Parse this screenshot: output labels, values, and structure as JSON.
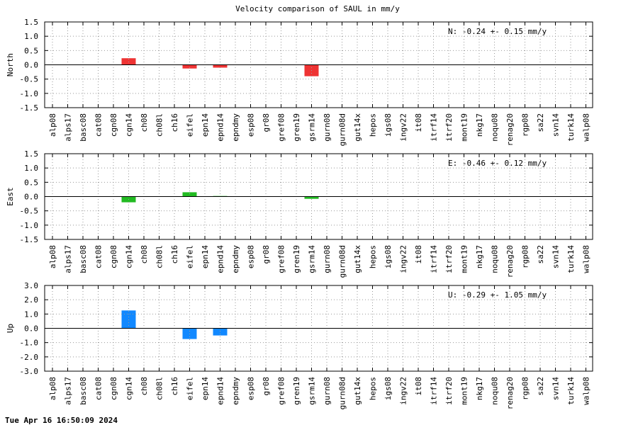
{
  "page": {
    "title": "Velocity comparison of SAUL in mm/y",
    "timestamp": "Tue Apr 16 16:50:09 2024"
  },
  "colors": {
    "north": "#ee3333",
    "east": "#22bb22",
    "up": "#1188ff",
    "grid": "#999999",
    "axis": "#000000"
  },
  "chart_data": [
    {
      "type": "bar",
      "ylabel": "North",
      "annotation": "N:  -0.24 +-  0.15 mm/y",
      "ylim": [
        -1.5,
        1.5
      ],
      "yticks": [
        "1.5",
        "1.0",
        "0.5",
        "0.0",
        "-0.5",
        "-1.0",
        "-1.5"
      ],
      "ytick_values": [
        1.5,
        1.0,
        0.5,
        0.0,
        -0.5,
        -1.0,
        -1.5
      ],
      "color_key": "north",
      "grid": true,
      "categories": [
        "alp08",
        "alps17",
        "basc08",
        "cat08",
        "cgn08",
        "cgn14",
        "ch08",
        "ch08l",
        "ch16",
        "eifel",
        "epn14",
        "epnd14",
        "epndmy",
        "esp08",
        "gr08",
        "gref08",
        "gren19",
        "gsrm14",
        "gurn08",
        "gurn08d",
        "gut14x",
        "hepos",
        "igs08",
        "ingv22",
        "it08",
        "itrf14",
        "itrf20",
        "mont19",
        "nkg17",
        "noqu08",
        "renag20",
        "rgp08",
        "sa22",
        "svn14",
        "turk14",
        "walp08"
      ],
      "values": [
        null,
        null,
        null,
        null,
        null,
        0.23,
        null,
        null,
        null,
        -0.13,
        null,
        -0.1,
        null,
        null,
        null,
        null,
        null,
        -0.4,
        null,
        null,
        null,
        null,
        null,
        null,
        null,
        null,
        null,
        null,
        null,
        null,
        null,
        null,
        null,
        null,
        null,
        null
      ]
    },
    {
      "type": "bar",
      "ylabel": "East",
      "annotation": "E:  -0.46 +-  0.12 mm/y",
      "ylim": [
        -1.5,
        1.5
      ],
      "yticks": [
        "1.5",
        "1.0",
        "0.5",
        "0.0",
        "-0.5",
        "-1.0",
        "-1.5"
      ],
      "ytick_values": [
        1.5,
        1.0,
        0.5,
        0.0,
        -0.5,
        -1.0,
        -1.5
      ],
      "color_key": "east",
      "grid": true,
      "categories": [
        "alp08",
        "alps17",
        "basc08",
        "cat08",
        "cgn08",
        "cgn14",
        "ch08",
        "ch08l",
        "ch16",
        "eifel",
        "epn14",
        "epnd14",
        "epndmy",
        "esp08",
        "gr08",
        "gref08",
        "gren19",
        "gsrm14",
        "gurn08",
        "gurn08d",
        "gut14x",
        "hepos",
        "igs08",
        "ingv22",
        "it08",
        "itrf14",
        "itrf20",
        "mont19",
        "nkg17",
        "noqu08",
        "renag20",
        "rgp08",
        "sa22",
        "svn14",
        "turk14",
        "walp08"
      ],
      "values": [
        null,
        null,
        null,
        null,
        null,
        -0.2,
        null,
        null,
        null,
        0.15,
        null,
        0.02,
        null,
        null,
        null,
        null,
        null,
        -0.08,
        null,
        null,
        null,
        null,
        null,
        null,
        null,
        null,
        null,
        null,
        null,
        null,
        null,
        null,
        null,
        null,
        null,
        null
      ]
    },
    {
      "type": "bar",
      "ylabel": "Up",
      "annotation": "U:  -0.29 +-  1.05 mm/y",
      "ylim": [
        -3.0,
        3.0
      ],
      "yticks": [
        "3.0",
        "2.0",
        "1.0",
        "0.0",
        "-1.0",
        "-2.0",
        "-3.0"
      ],
      "ytick_values": [
        3.0,
        2.0,
        1.0,
        0.0,
        -1.0,
        -2.0,
        -3.0
      ],
      "color_key": "up",
      "grid": true,
      "categories": [
        "alp08",
        "alps17",
        "basc08",
        "cat08",
        "cgn08",
        "cgn14",
        "ch08",
        "ch08l",
        "ch16",
        "eifel",
        "epn14",
        "epnd14",
        "epndmy",
        "esp08",
        "gr08",
        "gref08",
        "gren19",
        "gsrm14",
        "gurn08",
        "gurn08d",
        "gut14x",
        "hepos",
        "igs08",
        "ingv22",
        "it08",
        "itrf14",
        "itrf20",
        "mont19",
        "nkg17",
        "noqu08",
        "renag20",
        "rgp08",
        "sa22",
        "svn14",
        "turk14",
        "walp08"
      ],
      "values": [
        null,
        null,
        null,
        null,
        null,
        1.25,
        null,
        null,
        null,
        -0.75,
        null,
        -0.5,
        null,
        null,
        null,
        null,
        null,
        null,
        null,
        null,
        null,
        null,
        null,
        null,
        null,
        null,
        null,
        null,
        null,
        null,
        null,
        null,
        null,
        null,
        null,
        null
      ]
    }
  ]
}
